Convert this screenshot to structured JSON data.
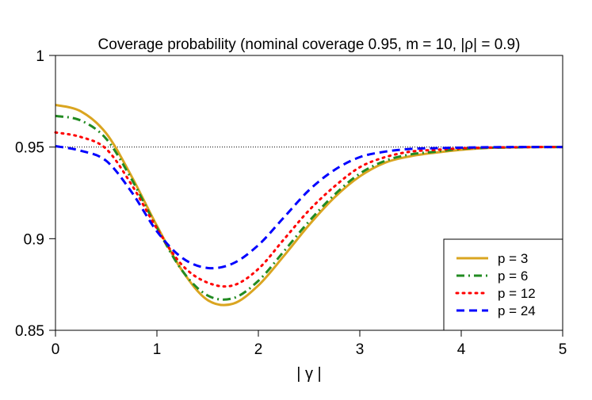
{
  "chart_data": {
    "type": "line",
    "title": "Coverage probability (nominal coverage 0.95, m = 10, |ρ| = 0.9)",
    "xlabel": "| γ |",
    "ylabel": "",
    "xlim": [
      0,
      5
    ],
    "ylim": [
      0.85,
      1.0
    ],
    "xticks": [
      0,
      1,
      2,
      3,
      4,
      5
    ],
    "xtick_labels": [
      "0",
      "1",
      "2",
      "3",
      "4",
      "5"
    ],
    "yticks": [
      0.85,
      0.9,
      0.95,
      1.0
    ],
    "ytick_labels": [
      "0.85",
      "0.9",
      "0.95",
      "1"
    ],
    "reference_line": {
      "y": 0.95,
      "style": "dotted",
      "color": "#000000"
    },
    "legend_position": "bottom-right",
    "x": [
      0,
      0.25,
      0.5,
      0.75,
      1.0,
      1.25,
      1.5,
      1.75,
      2.0,
      2.25,
      2.5,
      2.75,
      3.0,
      3.25,
      3.5,
      3.75,
      4.0,
      4.25,
      4.5,
      4.75,
      5.0
    ],
    "series": [
      {
        "name": "p = 3",
        "color": "#DAA520",
        "dash": "solid",
        "values": [
          0.973,
          0.9695,
          0.9575,
          0.934,
          0.907,
          0.8825,
          0.8665,
          0.8645,
          0.8745,
          0.8905,
          0.9075,
          0.9225,
          0.934,
          0.9415,
          0.945,
          0.947,
          0.9485,
          0.9495,
          0.9498,
          0.95,
          0.95
        ]
      },
      {
        "name": "p = 6",
        "color": "#228B22",
        "dash": "dashdot",
        "values": [
          0.967,
          0.9645,
          0.9545,
          0.9325,
          0.906,
          0.8825,
          0.869,
          0.8675,
          0.877,
          0.893,
          0.9095,
          0.924,
          0.9355,
          0.9425,
          0.946,
          0.9475,
          0.949,
          0.9496,
          0.9498,
          0.95,
          0.95
        ]
      },
      {
        "name": "p = 12",
        "color": "#FF0000",
        "dash": "dotted",
        "values": [
          0.958,
          0.9555,
          0.949,
          0.9295,
          0.9055,
          0.8855,
          0.876,
          0.8745,
          0.8835,
          0.8995,
          0.9155,
          0.9285,
          0.939,
          0.9445,
          0.9475,
          0.9485,
          0.9493,
          0.9497,
          0.9499,
          0.95,
          0.95
        ]
      },
      {
        "name": "p = 24",
        "color": "#0000FF",
        "dash": "dashed",
        "values": [
          0.9505,
          0.948,
          0.9425,
          0.9255,
          0.904,
          0.8895,
          0.884,
          0.8865,
          0.8965,
          0.9115,
          0.9265,
          0.9375,
          0.9445,
          0.9475,
          0.949,
          0.9494,
          0.9497,
          0.9499,
          0.95,
          0.95,
          0.95
        ]
      }
    ]
  }
}
